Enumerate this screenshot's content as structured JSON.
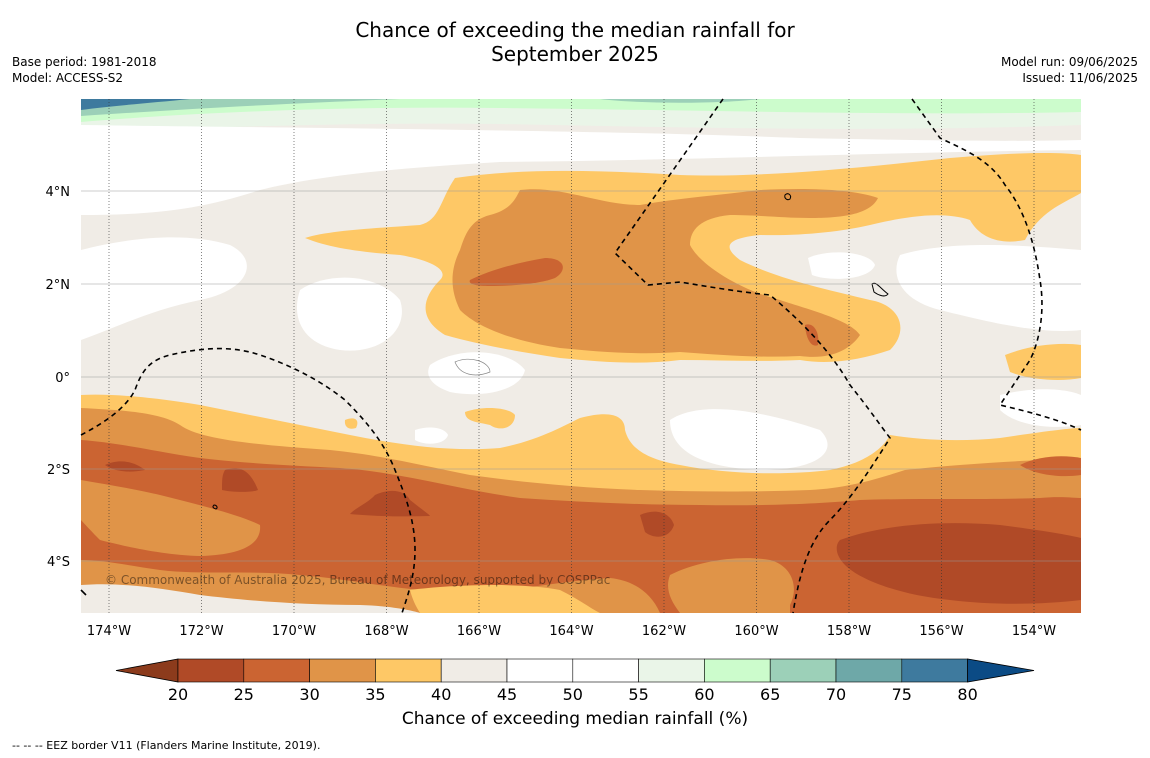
{
  "title": {
    "line1": "Chance of exceeding the median rainfall for",
    "line2": "September 2025"
  },
  "meta": {
    "base_period": "Base period: 1981-2018",
    "model": "Model: ACCESS-S2",
    "model_run": "Model run: 09/06/2025",
    "issued": "Issued: 11/06/2025"
  },
  "map": {
    "copyright": "© Commonwealth of Australia 2025, Bureau of Meteorology, supported by COSPPac",
    "lon_labels": [
      "174°W",
      "172°W",
      "170°W",
      "168°W",
      "166°W",
      "164°W",
      "162°W",
      "160°W",
      "158°W",
      "156°W",
      "154°W"
    ],
    "lat_labels": [
      "4°N",
      "2°N",
      "0°",
      "2°S",
      "4°S"
    ]
  },
  "colorbar": {
    "title": "Chance of exceeding median rainfall (%)",
    "ticks": [
      "20",
      "25",
      "30",
      "35",
      "40",
      "45",
      "50",
      "55",
      "60",
      "65",
      "70",
      "75",
      "80"
    ],
    "colors": [
      "#b04a27",
      "#cb6432",
      "#e09448",
      "#fec866",
      "#f0ece6",
      "#ffffff",
      "#ffffff",
      "#eaf5e8",
      "#ccfccc",
      "#9cd0b8",
      "#6ea8a8",
      "#3e7a9e"
    ],
    "under_color": "#8c3b1c",
    "over_color": "#0b4b85"
  },
  "footer": "--  --  -- EEZ border V11 (Flanders Marine Institute, 2019)."
}
